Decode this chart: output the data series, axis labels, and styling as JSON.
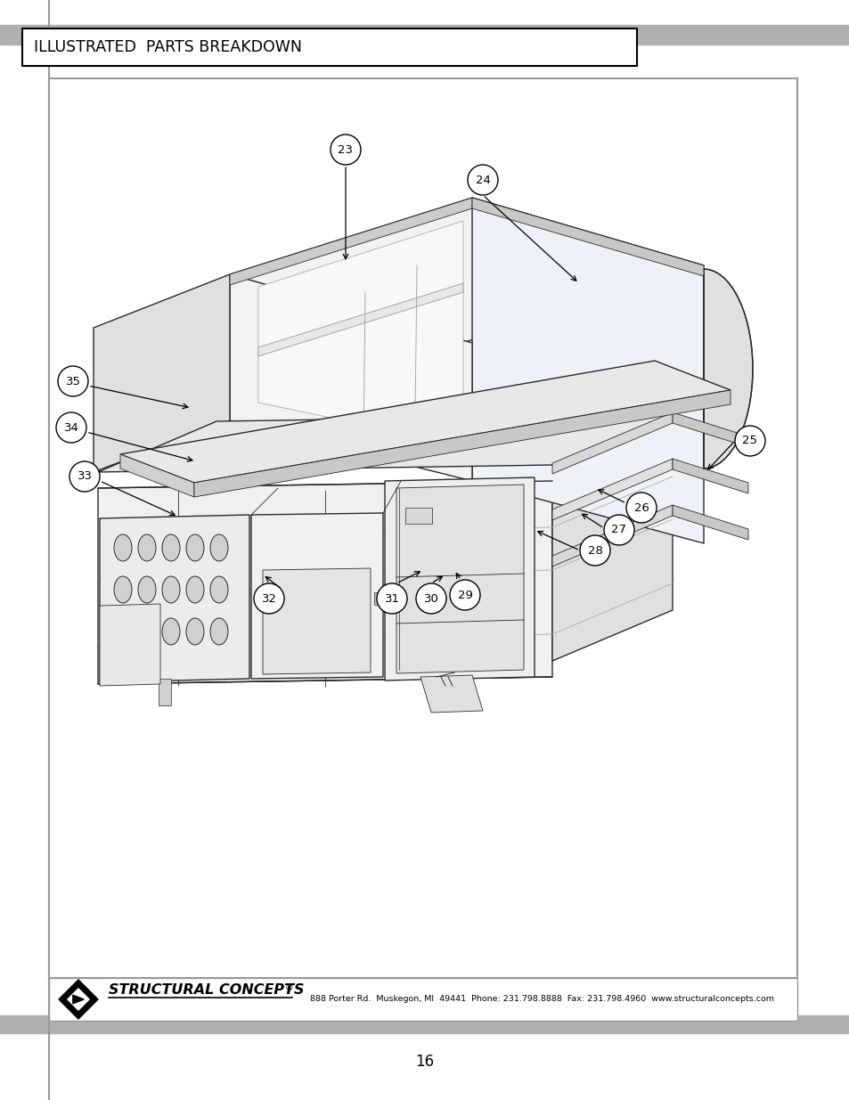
{
  "title": "ILLUSTRATED  PARTS BREAKDOWN",
  "page_number": "16",
  "footer_text": "888 Porter Rd.  Muskegon, MI  49441  Phone: 231.798.8888  Fax: 231.798.4960  www.structuralconcepts.com",
  "background_color": "#ffffff",
  "gray_bar_color": "#b0b0b0",
  "line_color": "#2a2a2a",
  "fill_light": "#f2f2f2",
  "fill_mid": "#e0e0e0",
  "fill_dark": "#cccccc",
  "fill_glass": "#eef2f8"
}
